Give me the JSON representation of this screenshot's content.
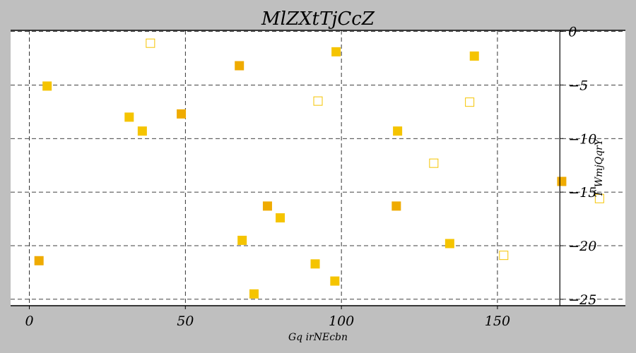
{
  "chart_data": {
    "type": "scatter",
    "title": "MlZXtTjCcZ",
    "xlabel": "Gq irNEcbn",
    "ylabel": "T WmjQqrY",
    "xlim": [
      -6,
      191
    ],
    "ylim": [
      -25.6,
      0.1
    ],
    "xticks": [
      0,
      50,
      100,
      150
    ],
    "yticks": [
      0,
      -5,
      -10,
      -15,
      -20,
      -25
    ],
    "x_tick_labels": [
      "0",
      "50",
      "100",
      "150"
    ],
    "y_tick_labels": [
      "0",
      "−5",
      "−10",
      "−15",
      "−20",
      "−25"
    ],
    "grid": true,
    "grid_style": "dashed",
    "y_axis_position": 170,
    "colors": {
      "gold": "#f5c400",
      "orange": "#efab00",
      "background": "#bfbfbf",
      "plot_bg": "#ffffff"
    },
    "points": [
      {
        "x": 38.8,
        "y": -1.1,
        "style": "hollow",
        "color": "#f5c400"
      },
      {
        "x": 98.3,
        "y": -1.9,
        "style": "filled",
        "color": "#f5c400"
      },
      {
        "x": 142.6,
        "y": -2.3,
        "style": "filled",
        "color": "#f5c400"
      },
      {
        "x": 67.3,
        "y": -3.2,
        "style": "filled",
        "color": "#efab00"
      },
      {
        "x": 5.7,
        "y": -5.1,
        "style": "filled",
        "color": "#f5c400"
      },
      {
        "x": 92.5,
        "y": -6.5,
        "style": "hollow",
        "color": "#f5c400"
      },
      {
        "x": 141.1,
        "y": -6.6,
        "style": "hollow",
        "color": "#f5c400"
      },
      {
        "x": 48.7,
        "y": -7.7,
        "style": "filled",
        "color": "#efab00"
      },
      {
        "x": 32.0,
        "y": -8.0,
        "style": "filled",
        "color": "#f5c400"
      },
      {
        "x": 36.2,
        "y": -9.3,
        "style": "filled",
        "color": "#f5c400"
      },
      {
        "x": 118.0,
        "y": -9.3,
        "style": "filled",
        "color": "#f5c400"
      },
      {
        "x": 129.6,
        "y": -12.3,
        "style": "hollow",
        "color": "#f5c400"
      },
      {
        "x": 170.6,
        "y": -14.0,
        "style": "filled",
        "color": "#efab00"
      },
      {
        "x": 182.7,
        "y": -15.6,
        "style": "hollow",
        "color": "#f5c400"
      },
      {
        "x": 76.3,
        "y": -16.3,
        "style": "filled",
        "color": "#efab00"
      },
      {
        "x": 117.6,
        "y": -16.3,
        "style": "filled",
        "color": "#efab00"
      },
      {
        "x": 80.4,
        "y": -17.4,
        "style": "filled",
        "color": "#f5c400"
      },
      {
        "x": 68.2,
        "y": -19.5,
        "style": "filled",
        "color": "#f5c400"
      },
      {
        "x": 134.7,
        "y": -19.8,
        "style": "filled",
        "color": "#f5c400"
      },
      {
        "x": 152.0,
        "y": -20.9,
        "style": "hollow",
        "color": "#f5c400"
      },
      {
        "x": 3.1,
        "y": -21.4,
        "style": "filled",
        "color": "#efab00"
      },
      {
        "x": 91.6,
        "y": -21.7,
        "style": "filled",
        "color": "#f5c400"
      },
      {
        "x": 97.9,
        "y": -23.3,
        "style": "filled",
        "color": "#f5c400"
      },
      {
        "x": 72.0,
        "y": -24.5,
        "style": "filled",
        "color": "#f5c400"
      }
    ]
  }
}
